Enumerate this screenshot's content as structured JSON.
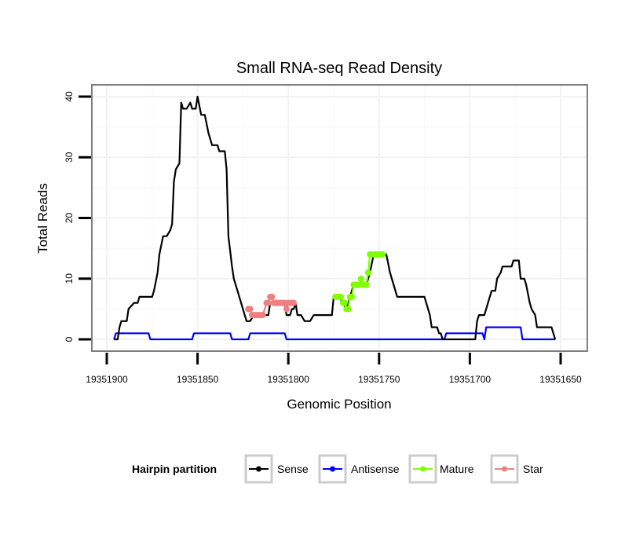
{
  "chart_data": {
    "type": "line",
    "title": "Small RNA-seq Read Density",
    "xlabel": "Genomic Position",
    "ylabel": "Total Reads",
    "x_reversed": true,
    "xlim": [
      19351908,
      19351640
    ],
    "ylim": [
      -2,
      42
    ],
    "xticks": [
      19351900,
      19351850,
      19351800,
      19351750,
      19351700,
      19351650
    ],
    "xtick_labels": [
      "19351900",
      "19351850",
      "19351800",
      "19351750",
      "19351700",
      "19351650"
    ],
    "yticks": [
      0,
      10,
      20,
      30,
      40
    ],
    "ytick_labels": [
      "0",
      "10",
      "20",
      "30",
      "40"
    ],
    "grid": true,
    "legend": {
      "title": "Hairpin partition",
      "position": "bottom",
      "entries": [
        {
          "name": "Sense",
          "color": "#000000"
        },
        {
          "name": "Antisense",
          "color": "#0000ff"
        },
        {
          "name": "Mature",
          "color": "#7fff00"
        },
        {
          "name": "Star",
          "color": "#f08080"
        }
      ]
    },
    "series": [
      {
        "name": "Sense",
        "color": "#000000",
        "style": "line",
        "points": [
          [
            19351896,
            0
          ],
          [
            19351894,
            0
          ],
          [
            19351893,
            2
          ],
          [
            19351892,
            3
          ],
          [
            19351889,
            3
          ],
          [
            19351888,
            5
          ],
          [
            19351885,
            6
          ],
          [
            19351883,
            6
          ],
          [
            19351882,
            7
          ],
          [
            19351875,
            7
          ],
          [
            19351874,
            8
          ],
          [
            19351872,
            11
          ],
          [
            19351871,
            14
          ],
          [
            19351869,
            17
          ],
          [
            19351867,
            17
          ],
          [
            19351865,
            18
          ],
          [
            19351864,
            19
          ],
          [
            19351863,
            26
          ],
          [
            19351862,
            28
          ],
          [
            19351860,
            29
          ],
          [
            19351859,
            39
          ],
          [
            19351858,
            38
          ],
          [
            19351856,
            38
          ],
          [
            19351854,
            39
          ],
          [
            19351853,
            38
          ],
          [
            19351851,
            38
          ],
          [
            19351850,
            40
          ],
          [
            19351848,
            37
          ],
          [
            19351846,
            37
          ],
          [
            19351844,
            34
          ],
          [
            19351843,
            33
          ],
          [
            19351842,
            32
          ],
          [
            19351839,
            32
          ],
          [
            19351838,
            31
          ],
          [
            19351835,
            31
          ],
          [
            19351834,
            28
          ],
          [
            19351833,
            17
          ],
          [
            19351831,
            12
          ],
          [
            19351830,
            10
          ],
          [
            19351828,
            8
          ],
          [
            19351827,
            7
          ],
          [
            19351825,
            5
          ],
          [
            19351823,
            3
          ],
          [
            19351821,
            3
          ],
          [
            19351819,
            4
          ],
          [
            19351811,
            4
          ],
          [
            19351810,
            6
          ],
          [
            19351804,
            6
          ],
          [
            19351802,
            6
          ],
          [
            19351801,
            4
          ],
          [
            19351799,
            4
          ],
          [
            19351798,
            5
          ],
          [
            19351797,
            5
          ],
          [
            19351796,
            6
          ],
          [
            19351795,
            4
          ],
          [
            19351793,
            4
          ],
          [
            19351791,
            3
          ],
          [
            19351788,
            3
          ],
          [
            19351786,
            4
          ],
          [
            19351776,
            4
          ],
          [
            19351775,
            7
          ],
          [
            19351772,
            7
          ],
          [
            19351770,
            6
          ],
          [
            19351768,
            5
          ],
          [
            19351766,
            7
          ],
          [
            19351764,
            9
          ],
          [
            19351757,
            9
          ],
          [
            19351755,
            11
          ],
          [
            19351753,
            14
          ],
          [
            19351746,
            14
          ],
          [
            19351744,
            11
          ],
          [
            19351742,
            9
          ],
          [
            19351741,
            8
          ],
          [
            19351740,
            7
          ],
          [
            19351725,
            7
          ],
          [
            19351723,
            5
          ],
          [
            19351722,
            4
          ],
          [
            19351721,
            2
          ],
          [
            19351718,
            2
          ],
          [
            19351717,
            1
          ],
          [
            19351716,
            1
          ],
          [
            19351715,
            0
          ],
          [
            19351697,
            0
          ],
          [
            19351696,
            3
          ],
          [
            19351695,
            4
          ],
          [
            19351692,
            4
          ],
          [
            19351690,
            6
          ],
          [
            19351688,
            8
          ],
          [
            19351686,
            8
          ],
          [
            19351685,
            10
          ],
          [
            19351683,
            11
          ],
          [
            19351682,
            12
          ],
          [
            19351677,
            12
          ],
          [
            19351676,
            13
          ],
          [
            19351673,
            13
          ],
          [
            19351672,
            10
          ],
          [
            19351670,
            10
          ],
          [
            19351669,
            9
          ],
          [
            19351667,
            6
          ],
          [
            19351666,
            5
          ],
          [
            19351664,
            4
          ],
          [
            19351663,
            2
          ],
          [
            19351659,
            2
          ],
          [
            19351657,
            2
          ],
          [
            19351655,
            2
          ],
          [
            19351653,
            0
          ]
        ]
      },
      {
        "name": "Antisense",
        "color": "#0000ff",
        "style": "line",
        "points": [
          [
            19351896,
            0
          ],
          [
            19351895,
            1
          ],
          [
            19351877,
            1
          ],
          [
            19351876,
            0
          ],
          [
            19351853,
            0
          ],
          [
            19351852,
            1
          ],
          [
            19351832,
            1
          ],
          [
            19351831,
            0
          ],
          [
            19351822,
            0
          ],
          [
            19351821,
            1
          ],
          [
            19351802,
            1
          ],
          [
            19351801,
            0
          ],
          [
            19351714,
            0
          ],
          [
            19351713,
            1
          ],
          [
            19351693,
            1
          ],
          [
            19351692,
            0
          ],
          [
            19351691,
            2
          ],
          [
            19351672,
            2
          ],
          [
            19351671,
            0
          ],
          [
            19351653,
            0
          ]
        ]
      },
      {
        "name": "Mature",
        "color": "#7fff00",
        "style": "points",
        "points": [
          [
            19351774,
            7
          ],
          [
            19351773,
            7
          ],
          [
            19351772,
            7
          ],
          [
            19351771,
            7
          ],
          [
            19351770,
            6
          ],
          [
            19351769,
            6
          ],
          [
            19351768,
            5
          ],
          [
            19351767,
            5
          ],
          [
            19351766,
            7
          ],
          [
            19351765,
            7
          ],
          [
            19351764,
            9
          ],
          [
            19351763,
            9
          ],
          [
            19351762,
            9
          ],
          [
            19351761,
            9
          ],
          [
            19351760,
            10
          ],
          [
            19351759,
            9
          ],
          [
            19351758,
            9
          ],
          [
            19351757,
            9
          ],
          [
            19351756,
            11
          ],
          [
            19351755,
            14
          ],
          [
            19351754,
            14
          ],
          [
            19351753,
            14
          ],
          [
            19351752,
            14
          ],
          [
            19351751,
            14
          ],
          [
            19351750,
            14
          ],
          [
            19351749,
            14
          ],
          [
            19351748,
            14
          ]
        ]
      },
      {
        "name": "Star",
        "color": "#f08080",
        "style": "points",
        "points": [
          [
            19351822,
            5
          ],
          [
            19351821,
            5
          ],
          [
            19351820,
            4
          ],
          [
            19351819,
            4
          ],
          [
            19351818,
            4
          ],
          [
            19351817,
            4
          ],
          [
            19351816,
            4
          ],
          [
            19351815,
            4
          ],
          [
            19351814,
            4
          ],
          [
            19351812,
            6
          ],
          [
            19351811,
            6
          ],
          [
            19351810,
            7
          ],
          [
            19351809,
            7
          ],
          [
            19351808,
            6
          ],
          [
            19351807,
            6
          ],
          [
            19351806,
            6
          ],
          [
            19351805,
            6
          ],
          [
            19351804,
            6
          ],
          [
            19351803,
            6
          ],
          [
            19351802,
            6
          ],
          [
            19351801,
            5
          ],
          [
            19351800,
            6
          ],
          [
            19351799,
            6
          ],
          [
            19351798,
            6
          ],
          [
            19351797,
            6
          ]
        ]
      }
    ]
  }
}
